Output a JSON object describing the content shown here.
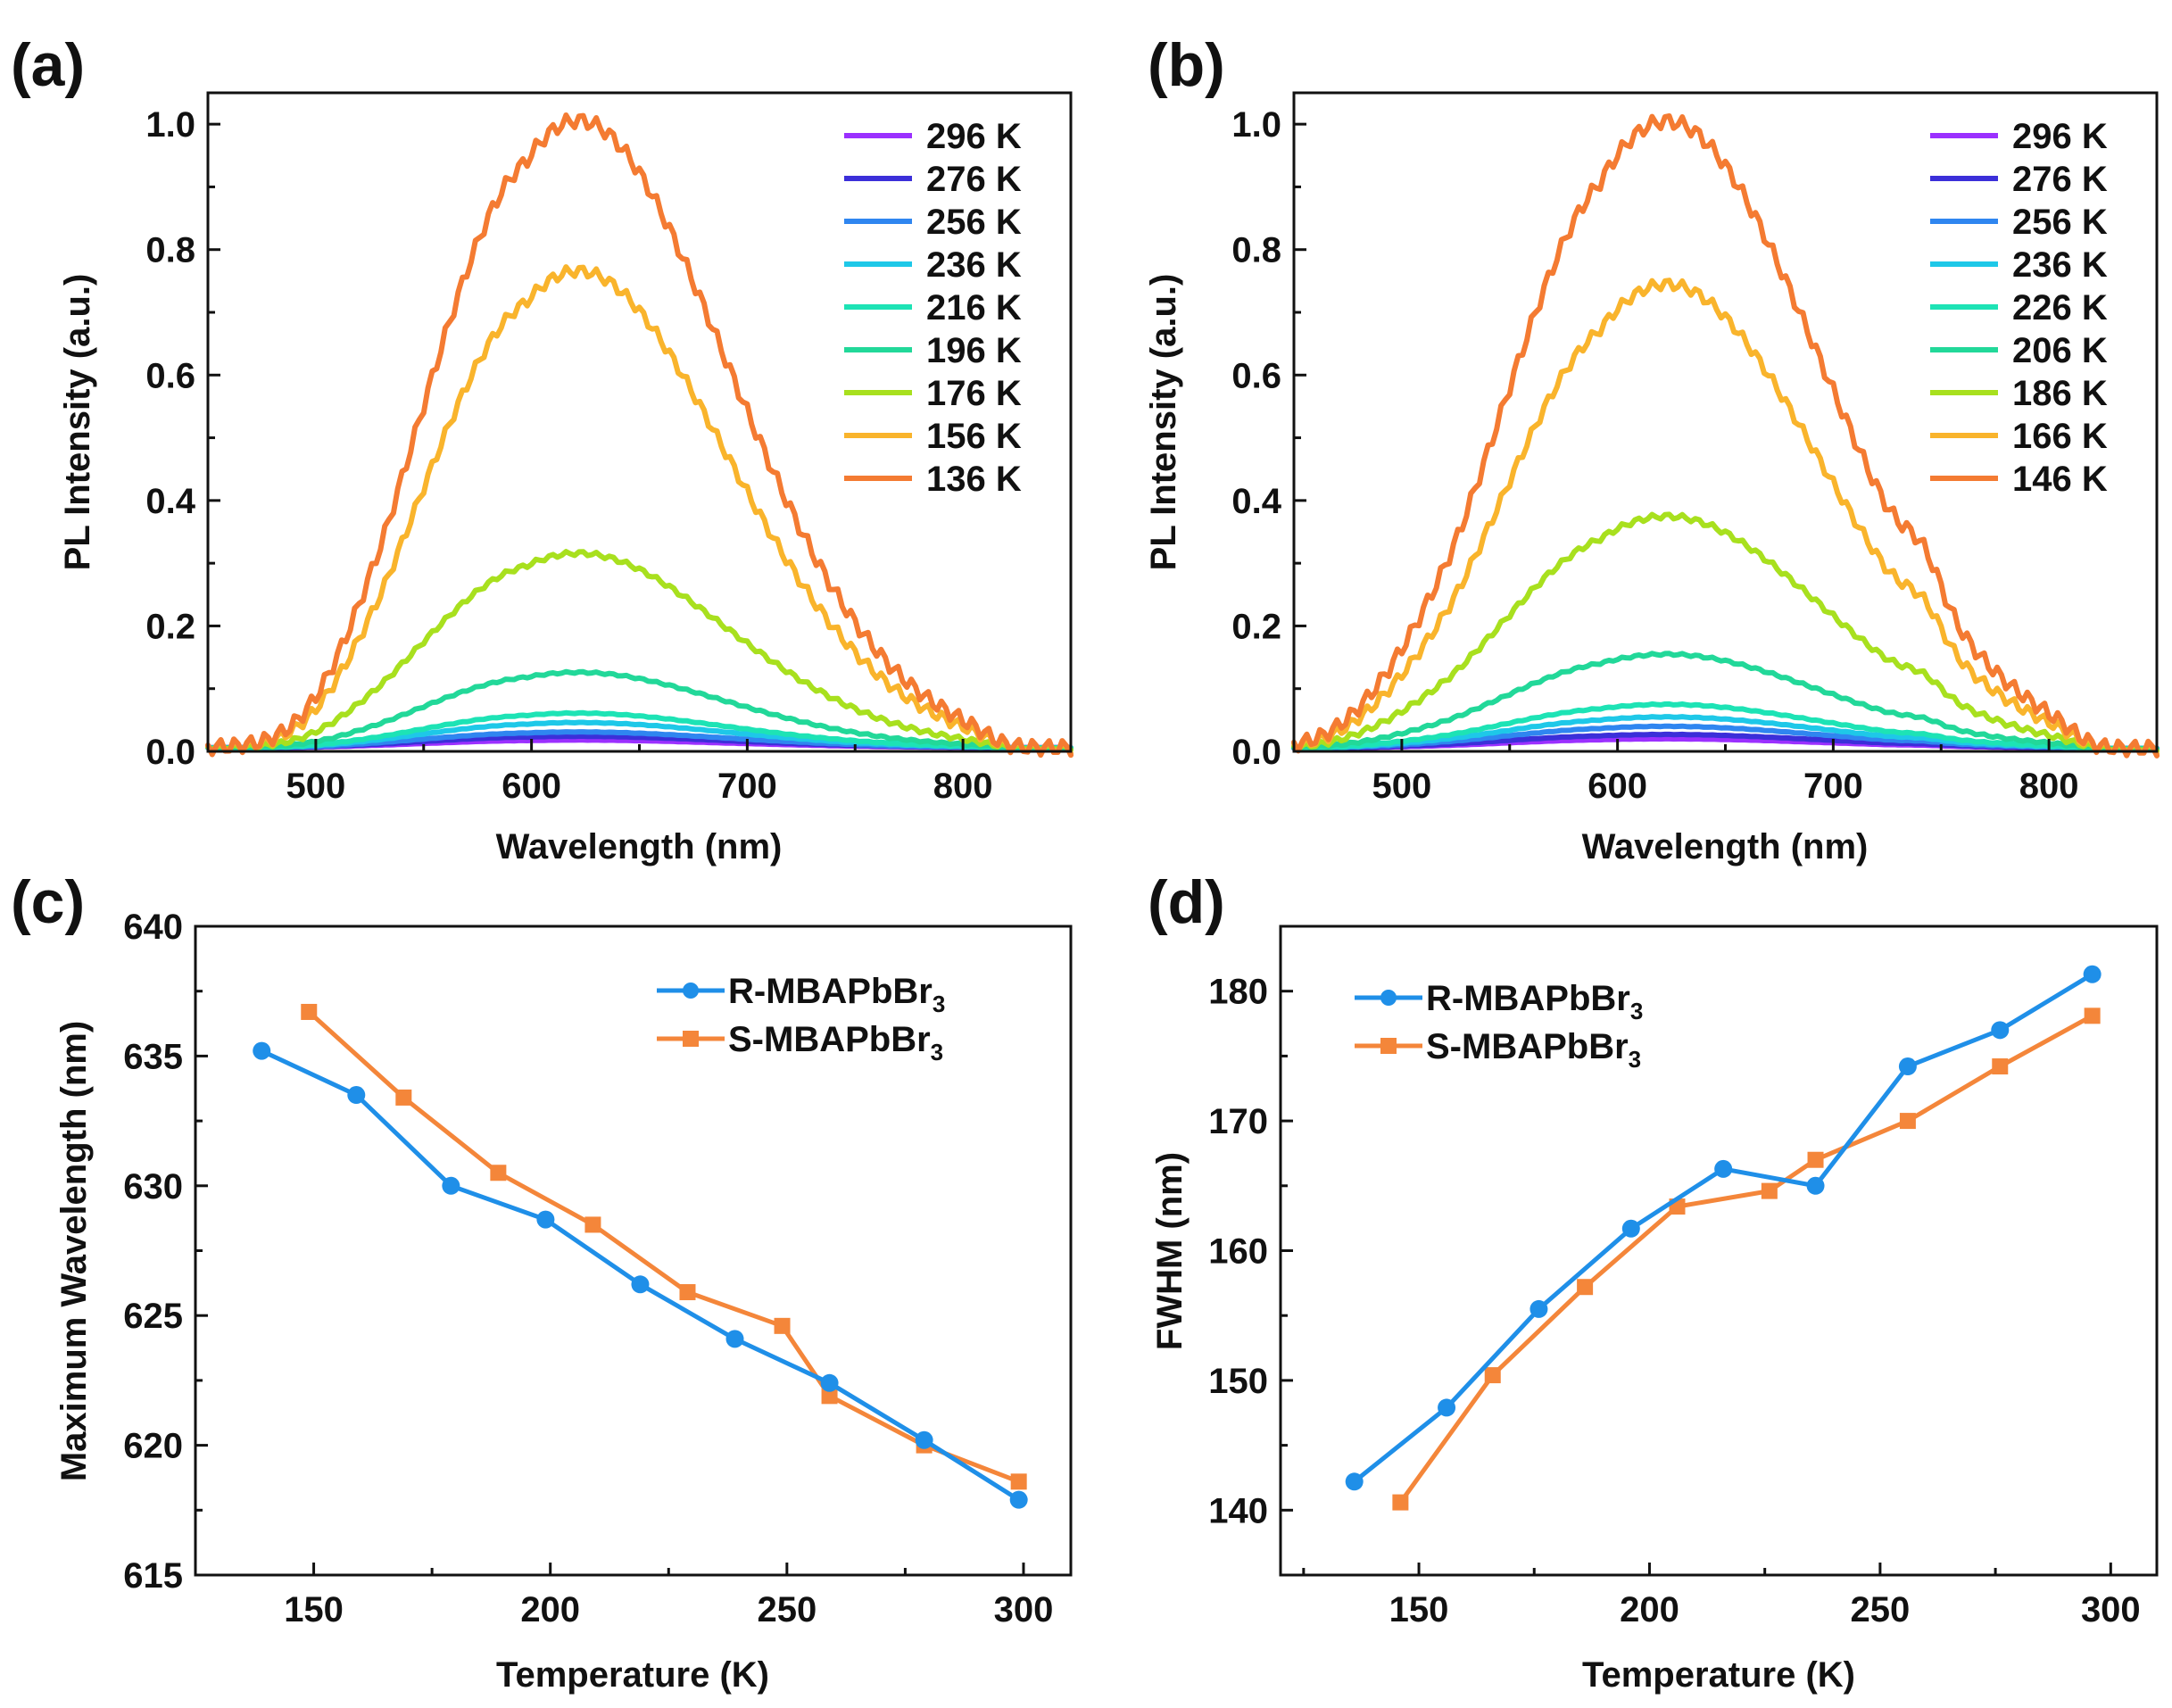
{
  "chart_data": [
    {
      "panel": "(a)",
      "type": "line",
      "xlabel": "Wavelength (nm)",
      "ylabel": "PL Intensity (a.u.)",
      "xlim": [
        450,
        850
      ],
      "ylim": [
        0,
        1.05
      ],
      "xticks": [
        500,
        600,
        700,
        800
      ],
      "yticks": [
        0.0,
        0.2,
        0.4,
        0.6,
        0.8,
        1.0
      ],
      "ytick_labels": [
        "0.0",
        "0.2",
        "0.4",
        "0.6",
        "0.8",
        "1.0"
      ],
      "legend_position": "top-right",
      "spectrum": {
        "onset": 500,
        "baseline": 0.012,
        "peak1_center": 600,
        "peak1_rel": 0.88,
        "peak2_center": 633,
        "sigma": 70,
        "shoulder_amp": 0.0,
        "shoulder_center": 740
      },
      "series": [
        {
          "name": "296 K",
          "color": "#9b30ff",
          "peak": 0.012
        },
        {
          "name": "276 K",
          "color": "#3b2fd9",
          "peak": 0.018
        },
        {
          "name": "256 K",
          "color": "#2f86f0",
          "peak": 0.025
        },
        {
          "name": "236 K",
          "color": "#1ec8e8",
          "peak": 0.04
        },
        {
          "name": "216 K",
          "color": "#1de3b5",
          "peak": 0.055
        },
        {
          "name": "196 K",
          "color": "#22d899",
          "peak": 0.12
        },
        {
          "name": "176 K",
          "color": "#a8e01e",
          "peak": 0.31
        },
        {
          "name": "156 K",
          "color": "#f9b42c",
          "peak": 0.76
        },
        {
          "name": "136 K",
          "color": "#f47b32",
          "peak": 1.0
        }
      ]
    },
    {
      "panel": "(b)",
      "type": "line",
      "xlabel": "Wavelength (nm)",
      "ylabel": "PL Intensity (a.u.)",
      "xlim": [
        450,
        850
      ],
      "ylim": [
        0,
        1.05
      ],
      "xticks": [
        500,
        600,
        700,
        800
      ],
      "yticks": [
        0.0,
        0.2,
        0.4,
        0.6,
        0.8,
        1.0
      ],
      "ytick_labels": [
        "0.0",
        "0.2",
        "0.4",
        "0.6",
        "0.8",
        "1.0"
      ],
      "legend_position": "top-right",
      "spectrum": {
        "onset": 470,
        "baseline": 0.01,
        "peak1_center": 598,
        "peak1_rel": 0.84,
        "peak2_center": 635,
        "sigma": 72,
        "shoulder_amp": 0.05,
        "shoulder_center": 742
      },
      "series": [
        {
          "name": "296 K",
          "color": "#9b30ff",
          "peak": 0.015
        },
        {
          "name": "276 K",
          "color": "#3b2fd9",
          "peak": 0.022
        },
        {
          "name": "256 K",
          "color": "#2f86f0",
          "peak": 0.035
        },
        {
          "name": "236 K",
          "color": "#1ec8e8",
          "peak": 0.05
        },
        {
          "name": "226 K",
          "color": "#1de3b5",
          "peak": 0.07
        },
        {
          "name": "206 K",
          "color": "#22d899",
          "peak": 0.15
        },
        {
          "name": "186 K",
          "color": "#a8e01e",
          "peak": 0.37
        },
        {
          "name": "166 K",
          "color": "#f9b42c",
          "peak": 0.74
        },
        {
          "name": "146 K",
          "color": "#f47b32",
          "peak": 1.0
        }
      ]
    },
    {
      "panel": "(c)",
      "type": "line",
      "xlabel": "Temperature (K)",
      "ylabel": "Maximum Wavelength (nm)",
      "xlim": [
        125,
        310
      ],
      "ylim": [
        615,
        640
      ],
      "xticks": [
        150,
        200,
        250,
        300
      ],
      "yticks": [
        615,
        620,
        625,
        630,
        635,
        640
      ],
      "legend_position": "top-right",
      "series": [
        {
          "name": "R-MBAPbBr",
          "subscript": "3",
          "color": "#1f8fe8",
          "marker": "circle",
          "x": [
            139,
            159,
            179,
            199,
            219,
            239,
            259,
            279,
            299
          ],
          "y": [
            635.2,
            633.5,
            630.0,
            628.7,
            626.2,
            624.1,
            622.4,
            620.2,
            617.9
          ]
        },
        {
          "name": "S-MBAPbBr",
          "subscript": "3",
          "color": "#f4863a",
          "marker": "square",
          "x": [
            149,
            169,
            189,
            209,
            229,
            249,
            259,
            279,
            299
          ],
          "y": [
            636.7,
            633.4,
            630.5,
            628.5,
            625.9,
            624.6,
            621.9,
            620.0,
            618.6
          ]
        }
      ]
    },
    {
      "panel": "(d)",
      "type": "line",
      "xlabel": "Temperature (K)",
      "ylabel": "FWHM (nm)",
      "xlim": [
        120,
        310
      ],
      "ylim": [
        135,
        185
      ],
      "xticks": [
        150,
        200,
        250,
        300
      ],
      "yticks": [
        140,
        150,
        160,
        170,
        180
      ],
      "legend_position": "top-left",
      "series": [
        {
          "name": "R-MBAPbBr",
          "subscript": "3",
          "color": "#1f8fe8",
          "marker": "circle",
          "x": [
            136,
            156,
            176,
            196,
            216,
            236,
            256,
            276,
            296
          ],
          "y": [
            142.2,
            147.9,
            155.5,
            161.7,
            166.3,
            165.0,
            174.2,
            177.0,
            181.3
          ]
        },
        {
          "name": "S-MBAPbBr",
          "subscript": "3",
          "color": "#f4863a",
          "marker": "square",
          "x": [
            146,
            166,
            186,
            206,
            226,
            236,
            256,
            276,
            296
          ],
          "y": [
            140.6,
            150.4,
            157.2,
            163.4,
            164.6,
            167.0,
            170.0,
            174.2,
            178.1
          ]
        }
      ]
    }
  ]
}
